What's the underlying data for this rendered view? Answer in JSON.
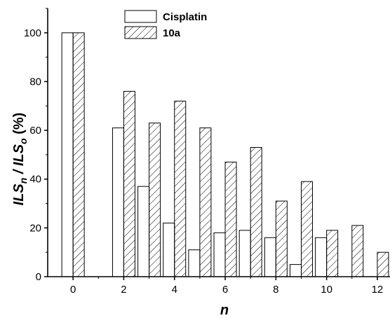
{
  "chart_data": {
    "type": "bar",
    "x": [
      0,
      1,
      2,
      3,
      4,
      5,
      6,
      7,
      8,
      9,
      10,
      11,
      12
    ],
    "series": [
      {
        "name": "Cisplatin",
        "fill": "none",
        "values": [
          100,
          null,
          61,
          37,
          22,
          11,
          18,
          19,
          16,
          5,
          16,
          null,
          null
        ]
      },
      {
        "name": "10a",
        "fill": "hatch",
        "values": [
          100,
          null,
          76,
          63,
          72,
          61,
          47,
          53,
          31,
          39,
          19,
          21,
          10
        ]
      }
    ],
    "xticks": [
      "0",
      "2",
      "4",
      "6",
      "8",
      "10",
      "12"
    ],
    "yticks": [
      "0",
      "20",
      "40",
      "60",
      "80",
      "100"
    ],
    "xlabel": "n",
    "ylabel": "ILSn / ILSo (%)",
    "ylabel_parts": {
      "a": "ILS",
      "a_sub": "n",
      "b": " / ILS",
      "b_sub": "o",
      "c": " (%)"
    },
    "xlim": [
      -1,
      12.5
    ],
    "ylim": [
      0,
      110
    ],
    "legend_position": "top-center",
    "grid": false
  }
}
